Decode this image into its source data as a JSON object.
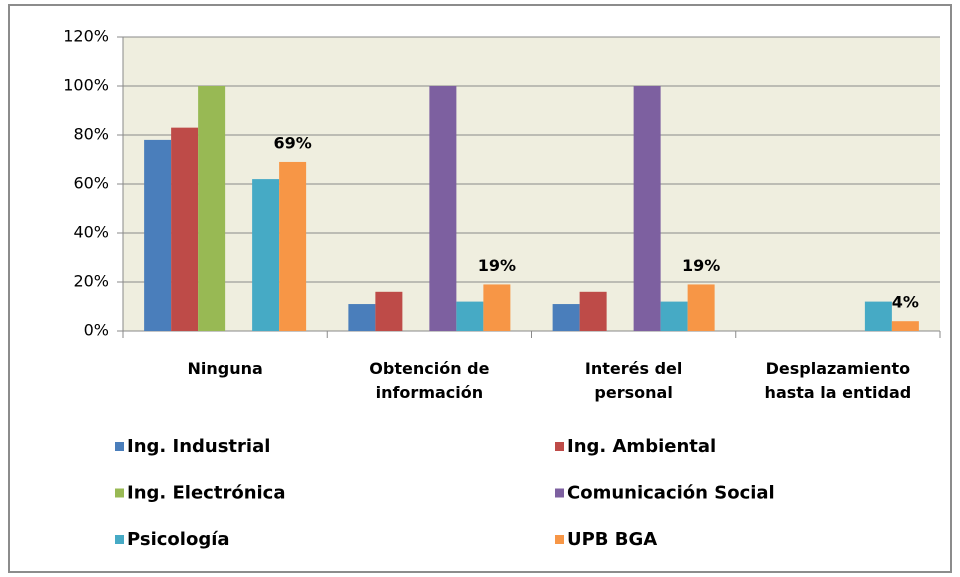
{
  "chart_data": {
    "type": "bar",
    "categories": [
      "Ninguna",
      "Obtención de información",
      "Interés del personal",
      "Desplazamiento hasta la entidad"
    ],
    "series": [
      {
        "name": "Ing. Industrial",
        "color": "#4a7ebb",
        "values": [
          78,
          11,
          11,
          0
        ]
      },
      {
        "name": "Ing. Ambiental",
        "color": "#be4b48",
        "values": [
          83,
          16,
          16,
          0
        ]
      },
      {
        "name": "Ing. Electrónica",
        "color": "#98b954",
        "values": [
          100,
          0,
          0,
          0
        ]
      },
      {
        "name": "Comunicación Social",
        "color": "#7d60a0",
        "values": [
          0,
          100,
          100,
          0
        ]
      },
      {
        "name": "Psicología",
        "color": "#46aac5",
        "values": [
          62,
          12,
          12,
          12
        ]
      },
      {
        "name": "UPB BGA",
        "color": "#f79646",
        "values": [
          69,
          19,
          19,
          4
        ],
        "value_labels": [
          "69%",
          "19%",
          "19%",
          "4%"
        ]
      }
    ],
    "ylim": [
      0,
      120
    ],
    "yticks": [
      {
        "value": 0,
        "label": "0%"
      },
      {
        "value": 20,
        "label": "20%"
      },
      {
        "value": 40,
        "label": "40%"
      },
      {
        "value": 60,
        "label": "60%"
      },
      {
        "value": 80,
        "label": "80%"
      },
      {
        "value": 100,
        "label": "100%"
      },
      {
        "value": 120,
        "label": "120%"
      }
    ],
    "grid": true,
    "legend": "bottom"
  }
}
